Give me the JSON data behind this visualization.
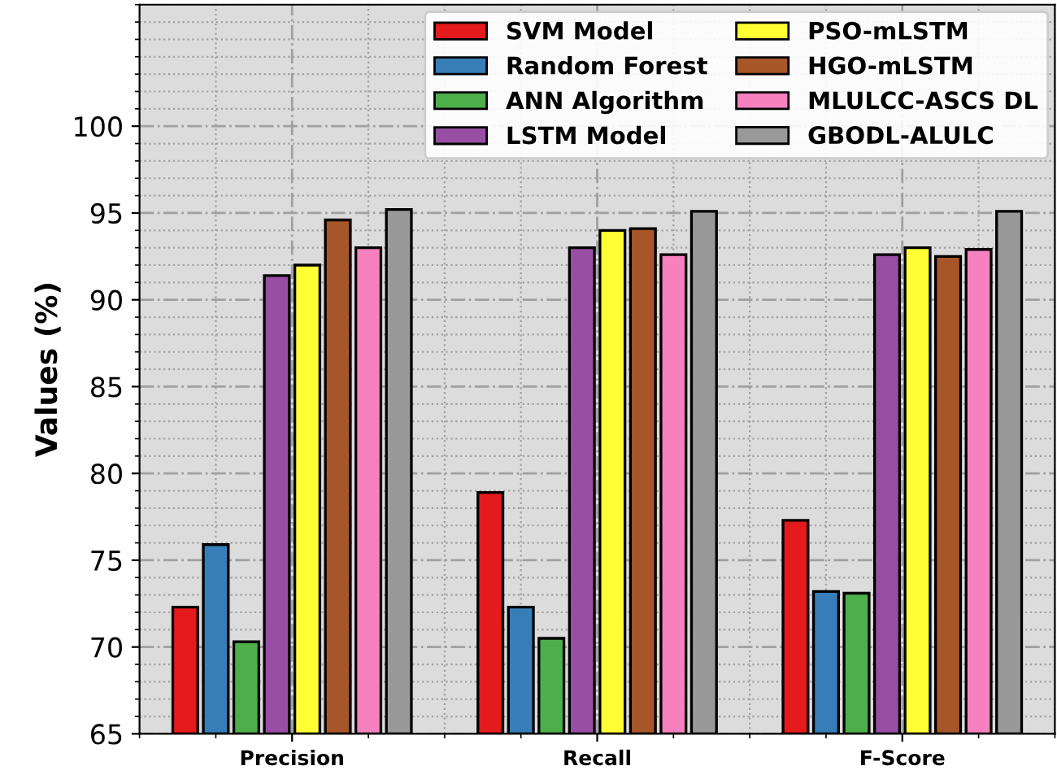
{
  "chart_data": {
    "type": "bar",
    "ylabel": "Values (%)",
    "categories": [
      "Precision",
      "Recall",
      "F-Score"
    ],
    "series": [
      {
        "name": "SVM Model",
        "color": "#e41a1c",
        "values": [
          72.3,
          78.9,
          77.3
        ]
      },
      {
        "name": "Random Forest",
        "color": "#377eb8",
        "values": [
          75.9,
          72.3,
          73.2
        ]
      },
      {
        "name": "ANN Algorithm",
        "color": "#4daf4a",
        "values": [
          70.3,
          70.5,
          73.1
        ]
      },
      {
        "name": "LSTM Model",
        "color": "#984ea3",
        "values": [
          91.4,
          93.0,
          92.6
        ]
      },
      {
        "name": "PSO-mLSTM",
        "color": "#ffff33",
        "values": [
          92.0,
          94.0,
          93.0
        ]
      },
      {
        "name": "HGO-mLSTM",
        "color": "#a65628",
        "values": [
          94.6,
          94.1,
          92.5
        ]
      },
      {
        "name": "MLULCC-ASCS DL",
        "color": "#f781bf",
        "values": [
          93.0,
          92.6,
          92.9
        ]
      },
      {
        "name": "GBODL-ALULC",
        "color": "#999999",
        "values": [
          95.2,
          95.1,
          95.1
        ]
      }
    ],
    "ylim": [
      65,
      107
    ],
    "yticks": [
      65,
      70,
      75,
      80,
      85,
      90,
      95,
      100
    ],
    "grid": true,
    "legend": "top right"
  }
}
